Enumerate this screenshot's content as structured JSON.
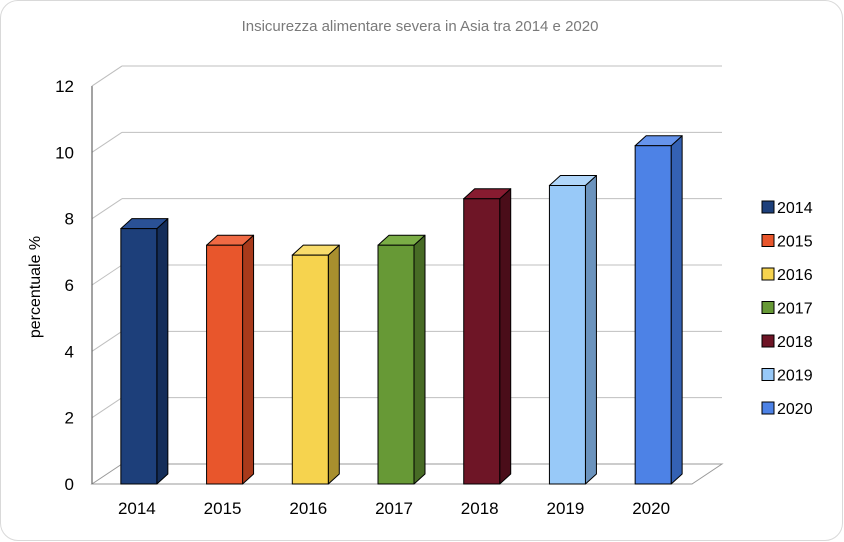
{
  "chart_data": {
    "type": "bar",
    "title": "Insicurezza alimentare severa in Asia tra 2014 e 2020",
    "xlabel": "",
    "ylabel": "percentuale %",
    "categories": [
      "2014",
      "2015",
      "2016",
      "2017",
      "2018",
      "2019",
      "2020"
    ],
    "values": [
      7.7,
      7.2,
      6.9,
      7.2,
      8.6,
      9.0,
      10.2
    ],
    "ylim": [
      0,
      12
    ],
    "yticks": [
      "0",
      "2",
      "4",
      "6",
      "8",
      "10",
      "12"
    ],
    "grid": true,
    "legend_position": "right",
    "legend": [
      "2014",
      "2015",
      "2016",
      "2017",
      "2018",
      "2019",
      "2020"
    ],
    "colors": {
      "2014": {
        "front": "#1d3f7a",
        "side": "#142d59",
        "top": "#2a5196"
      },
      "2015": {
        "front": "#e8562c",
        "side": "#a83a1b",
        "top": "#f06a44"
      },
      "2016": {
        "front": "#f6d34e",
        "side": "#a88f2e",
        "top": "#f8dc6c"
      },
      "2017": {
        "front": "#679936",
        "side": "#476b25",
        "top": "#7aad46"
      },
      "2018": {
        "front": "#6e1526",
        "side": "#4a0d19",
        "top": "#871b30"
      },
      "2019": {
        "front": "#98c9f8",
        "side": "#6b93bd",
        "top": "#b0d6fa"
      },
      "2020": {
        "front": "#4d82e6",
        "side": "#3461b3",
        "top": "#6694ec"
      }
    }
  }
}
